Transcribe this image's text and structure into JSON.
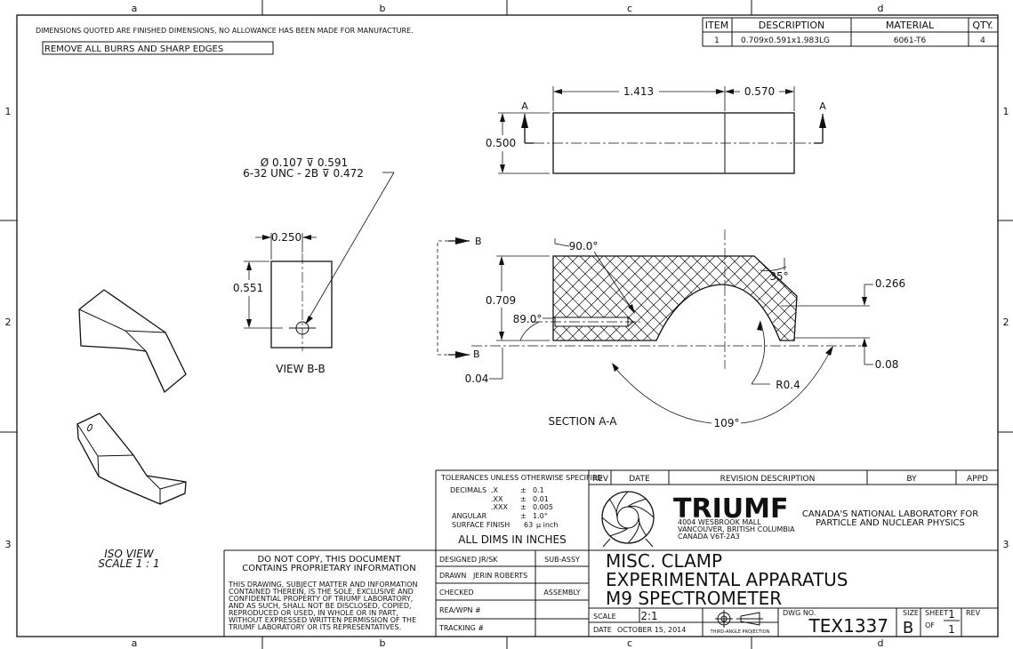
{
  "zones": {
    "columns": [
      "a",
      "b",
      "c",
      "d"
    ],
    "rows": [
      "1",
      "2",
      "3"
    ]
  },
  "notes": {
    "dimensions_note": "DIMENSIONS QUOTED ARE FINISHED DIMENSIONS, NO ALLOWANCE HAS BEEN MADE FOR MANUFACTURE.",
    "burrs_note": "REMOVE ALL BURRS AND SHARP EDGES"
  },
  "bom": {
    "headers": [
      "ITEM",
      "DESCRIPTION",
      "MATERIAL",
      "QTY."
    ],
    "rows": [
      [
        "1",
        "0.709x0.591x1.983LG",
        "6061-T6",
        "4"
      ]
    ]
  },
  "top_view": {
    "dim_length": "1.413",
    "dim_right": "0.570",
    "dim_height": "0.500",
    "section_left": "A",
    "section_right": "A"
  },
  "view_bb": {
    "hole_line1": "Ø 0.107 ⊽ 0.591",
    "hole_line2": "6-32 UNC - 2B ⊽ 0.472",
    "dim_width": "0.250",
    "dim_height": "0.551",
    "label": "VIEW B-B"
  },
  "section_aa": {
    "cut_top": "B",
    "cut_bottom": "B",
    "dim_angle_top": "90.0°",
    "dim_angle_right": "35°",
    "dim_height": "0.709",
    "dim_angle_left": "89.0°",
    "dim_right_top": "0.266",
    "dim_right_bottom": "0.08",
    "dim_left_bottom": "0.04",
    "dim_radius": "R0.4",
    "dim_arc": "109°",
    "label": "SECTION A-A"
  },
  "iso": {
    "label_line1": "ISO VIEW",
    "label_line2": "SCALE 1 : 1"
  },
  "tolerances": {
    "header": "TOLERANCES UNLESS OTHERWISE SPECIFIED",
    "rows": [
      [
        "DECIMALS",
        ".X",
        "±",
        "0.1"
      ],
      [
        "",
        ".XX",
        "±",
        "0.01"
      ],
      [
        "",
        ".XXX",
        "±",
        "0.005"
      ],
      [
        "ANGULAR",
        "",
        "±",
        "1.0°"
      ],
      [
        "SURFACE FINISH",
        "",
        "63",
        "μ inch"
      ]
    ],
    "footer": "ALL DIMS IN INCHES"
  },
  "revision": {
    "headers": [
      "REV",
      "DATE",
      "REVISION DESCRIPTION",
      "BY",
      "APPD"
    ]
  },
  "company": {
    "name": "TRIUMF",
    "address1": "4004 WESBROOK MALL",
    "address2": "VANCOUVER, BRITISH COLUMBIA",
    "address3": "CANADA V6T-2A3",
    "tagline1": "CANADA'S NATIONAL LABORATORY FOR",
    "tagline2": "PARTICLE AND NUCLEAR PHYSICS"
  },
  "proprietary": {
    "title1": "DO NOT COPY, THIS DOCUMENT",
    "title2": "CONTAINS PROPRIETARY INFORMATION",
    "body": [
      "THIS DRAWING, SUBJECT MATTER AND INFORMATION",
      "CONTAINED THEREIN, IS THE SOLE, EXCLUSIVE AND",
      "CONFIDENTIAL PROPERTY OF  TRIUMF LABORATORY,",
      "AND AS SUCH, SHALL NOT BE DISCLOSED, COPIED,",
      "REPRODUCED  OR USED,  IN WHOLE  OR IN PART,",
      "WITHOUT EXPRESSED WRITTEN PERMISSION OF THE",
      "TRIUMF LABORATORY  OR  ITS  REPRESENTATIVES."
    ]
  },
  "signoff": {
    "designed": "DESIGNED JR/SK",
    "drawn_label": "DRAWN",
    "drawn_value": "JERIN ROBERTS",
    "checked": "CHECKED",
    "rea": "REA/WPN #",
    "tracking": "TRACKING #",
    "sub_assy": "SUB-ASSY",
    "assembly": "ASSEMBLY"
  },
  "title_block": {
    "title1": "MISC. CLAMP",
    "title2": "EXPERIMENTAL APPARATUS",
    "title3": "M9 SPECTROMETER",
    "scale_label": "SCALE",
    "scale_value": "2:1",
    "date_label": "DATE",
    "date_value": "OCTOBER 15, 2014",
    "projection_label": "THIRD-ANGLE PROJECTION",
    "dwg_label": "DWG NO.",
    "dwg_no": "TEX1337",
    "size_label": "SIZE",
    "size_value": "B",
    "sheet_label": "SHEET",
    "sheet_value": "1",
    "of_label": "OF",
    "of_value": "1",
    "rev_label": "REV"
  }
}
